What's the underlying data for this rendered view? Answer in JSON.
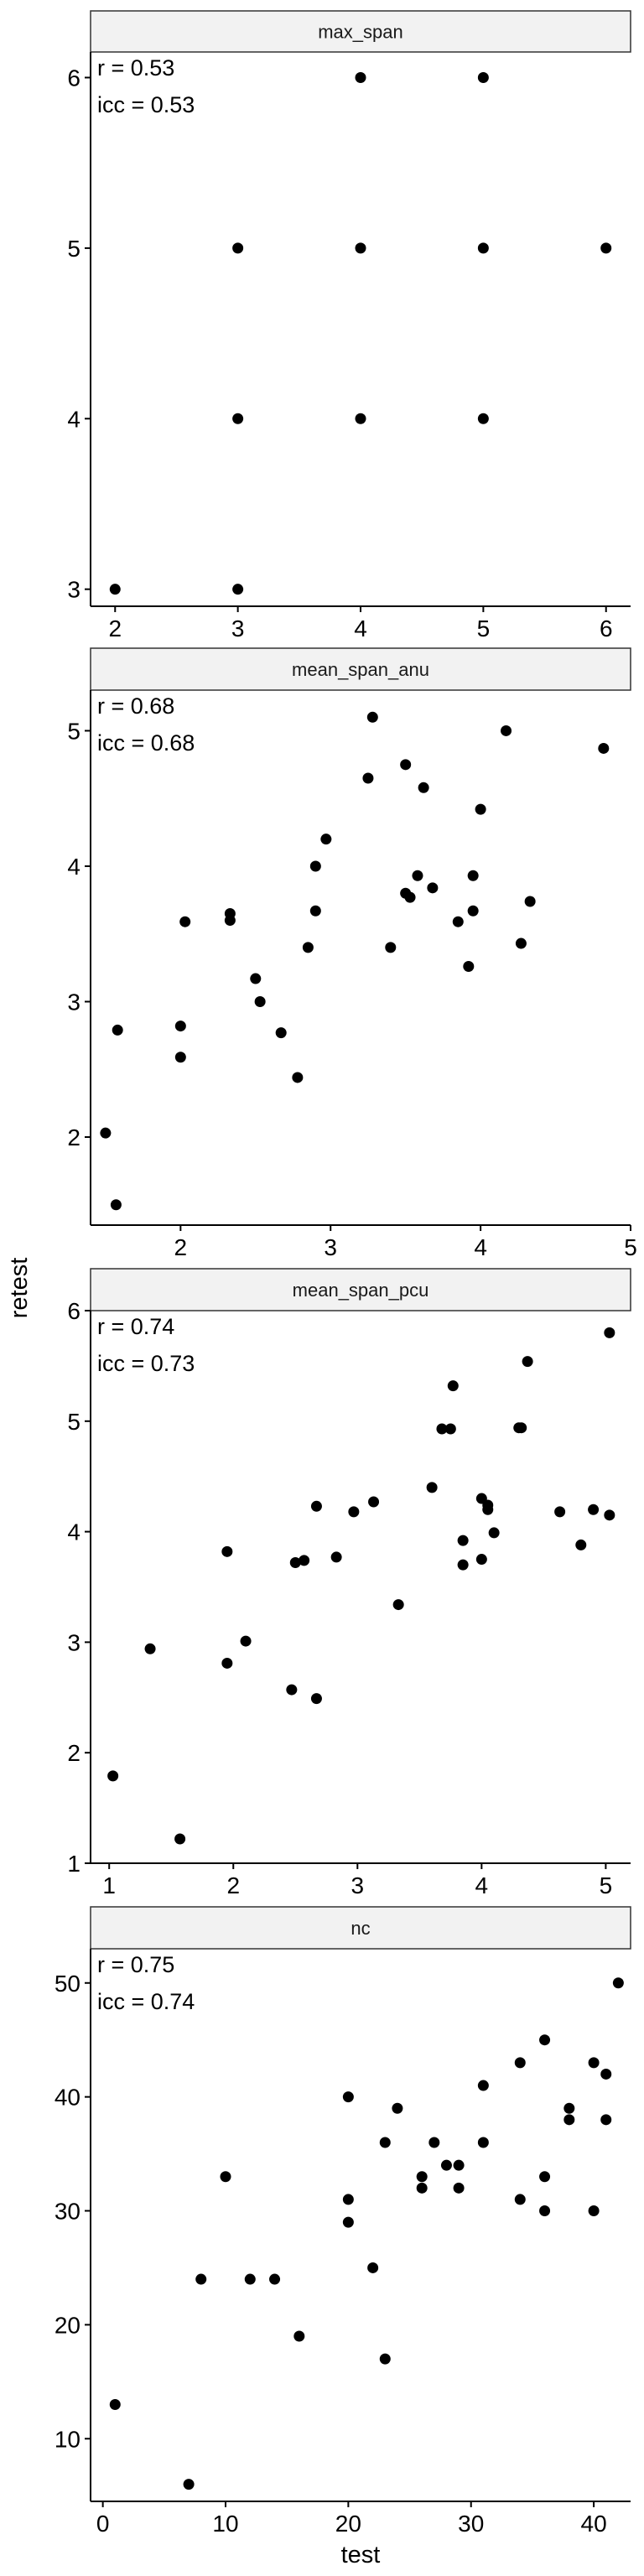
{
  "chart_data": {
    "type": "scatter",
    "xlabel": "test",
    "ylabel": "retest",
    "grid": false,
    "facets": [
      {
        "title": "max_span",
        "stats": [
          "r = 0.53",
          "icc = 0.53"
        ],
        "xlim": [
          1.8,
          6.2
        ],
        "ylim": [
          2.9,
          6.15
        ],
        "xticks": [
          2,
          3,
          4,
          5,
          6
        ],
        "yticks": [
          3,
          4,
          5,
          6
        ],
        "points": [
          [
            2,
            3
          ],
          [
            3,
            3
          ],
          [
            3,
            4
          ],
          [
            3,
            5
          ],
          [
            4,
            4
          ],
          [
            4,
            5
          ],
          [
            4,
            6
          ],
          [
            5,
            4
          ],
          [
            5,
            5
          ],
          [
            5,
            6
          ],
          [
            6,
            5
          ]
        ]
      },
      {
        "title": "mean_span_anu",
        "stats": [
          "r = 0.68",
          "icc = 0.68"
        ],
        "xlim": [
          1.4,
          5.0
        ],
        "ylim": [
          1.35,
          5.3
        ],
        "xticks": [
          2,
          3,
          4,
          5
        ],
        "yticks": [
          2,
          3,
          4,
          5
        ],
        "points": [
          [
            1.5,
            2.03
          ],
          [
            1.57,
            1.5
          ],
          [
            1.58,
            2.79
          ],
          [
            2.0,
            2.59
          ],
          [
            2.0,
            2.82
          ],
          [
            2.03,
            3.59
          ],
          [
            2.33,
            3.6
          ],
          [
            2.33,
            3.65
          ],
          [
            2.5,
            3.17
          ],
          [
            2.53,
            3.0
          ],
          [
            2.67,
            2.77
          ],
          [
            2.78,
            2.44
          ],
          [
            2.85,
            3.4
          ],
          [
            2.9,
            3.67
          ],
          [
            2.9,
            4.0
          ],
          [
            2.97,
            4.2
          ],
          [
            3.25,
            4.65
          ],
          [
            3.28,
            5.1
          ],
          [
            3.4,
            3.4
          ],
          [
            3.5,
            4.75
          ],
          [
            3.5,
            3.8
          ],
          [
            3.53,
            3.77
          ],
          [
            3.58,
            3.93
          ],
          [
            3.62,
            4.58
          ],
          [
            3.68,
            3.84
          ],
          [
            3.85,
            3.59
          ],
          [
            3.92,
            3.26
          ],
          [
            3.95,
            3.93
          ],
          [
            3.95,
            3.67
          ],
          [
            4.0,
            4.42
          ],
          [
            4.17,
            5.0
          ],
          [
            4.27,
            3.43
          ],
          [
            4.33,
            3.74
          ],
          [
            4.82,
            4.87
          ]
        ]
      },
      {
        "title": "mean_span_pcu",
        "stats": [
          "r = 0.74",
          "icc = 0.73"
        ],
        "xlim": [
          0.85,
          5.2
        ],
        "ylim": [
          1.0,
          6.0
        ],
        "xticks": [
          1,
          2,
          3,
          4,
          5
        ],
        "yticks": [
          1,
          2,
          3,
          4,
          5,
          6
        ],
        "points": [
          [
            1.03,
            1.79
          ],
          [
            1.33,
            2.94
          ],
          [
            1.57,
            1.22
          ],
          [
            1.95,
            3.82
          ],
          [
            1.95,
            2.81
          ],
          [
            2.1,
            3.01
          ],
          [
            2.47,
            2.57
          ],
          [
            2.5,
            3.72
          ],
          [
            2.57,
            3.74
          ],
          [
            2.67,
            4.23
          ],
          [
            2.67,
            2.49
          ],
          [
            2.83,
            3.77
          ],
          [
            2.97,
            4.18
          ],
          [
            3.13,
            4.27
          ],
          [
            3.33,
            3.34
          ],
          [
            3.6,
            4.4
          ],
          [
            3.68,
            4.93
          ],
          [
            3.75,
            4.93
          ],
          [
            3.77,
            5.32
          ],
          [
            3.85,
            3.92
          ],
          [
            3.85,
            3.7
          ],
          [
            4.0,
            4.3
          ],
          [
            4.0,
            3.75
          ],
          [
            4.05,
            4.2
          ],
          [
            4.05,
            4.24
          ],
          [
            4.1,
            3.99
          ],
          [
            4.3,
            4.94
          ],
          [
            4.32,
            4.94
          ],
          [
            4.37,
            5.54
          ],
          [
            4.63,
            4.18
          ],
          [
            4.8,
            3.88
          ],
          [
            4.9,
            4.2
          ],
          [
            5.03,
            4.15
          ],
          [
            5.03,
            5.8
          ]
        ]
      },
      {
        "title": "nc",
        "stats": [
          "r = 0.75",
          "icc = 0.74"
        ],
        "xlim": [
          -1,
          43
        ],
        "ylim": [
          4.5,
          53
        ],
        "xticks": [
          0,
          10,
          20,
          30,
          40
        ],
        "yticks": [
          10,
          20,
          30,
          40,
          50
        ],
        "points": [
          [
            1,
            13
          ],
          [
            7,
            6
          ],
          [
            8,
            24
          ],
          [
            10,
            33
          ],
          [
            12,
            24
          ],
          [
            14,
            24
          ],
          [
            16,
            19
          ],
          [
            20,
            40
          ],
          [
            20,
            31
          ],
          [
            20,
            29
          ],
          [
            22,
            25
          ],
          [
            23,
            36
          ],
          [
            23,
            17
          ],
          [
            24,
            39
          ],
          [
            26,
            33
          ],
          [
            26,
            32
          ],
          [
            27,
            36
          ],
          [
            28,
            34
          ],
          [
            29,
            34
          ],
          [
            29,
            32
          ],
          [
            31,
            41
          ],
          [
            31,
            36
          ],
          [
            34,
            43
          ],
          [
            34,
            31
          ],
          [
            36,
            45
          ],
          [
            36,
            33
          ],
          [
            36,
            30
          ],
          [
            38,
            39
          ],
          [
            38,
            38
          ],
          [
            40,
            43
          ],
          [
            40,
            30
          ],
          [
            41,
            42
          ],
          [
            41,
            38
          ],
          [
            42,
            50
          ]
        ]
      }
    ]
  }
}
